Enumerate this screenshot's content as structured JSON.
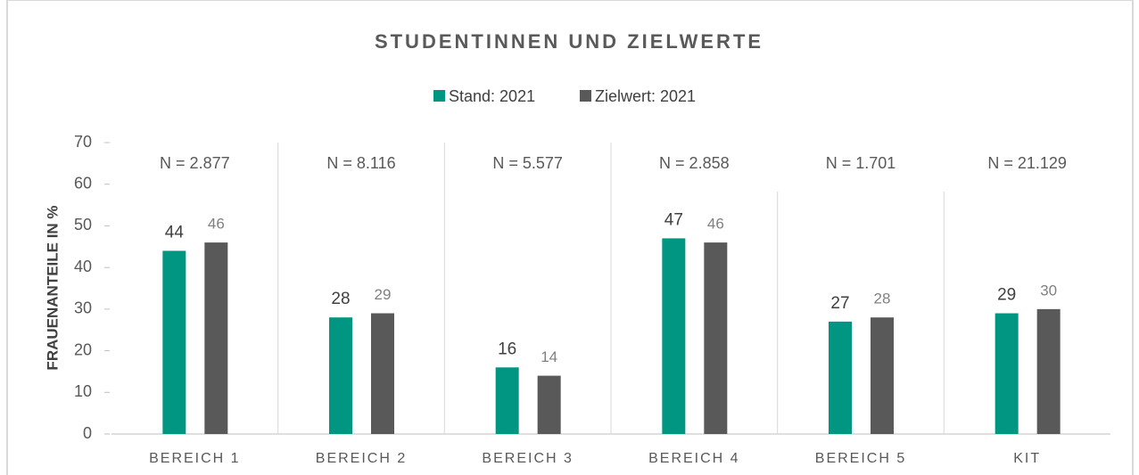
{
  "chart_data": {
    "type": "bar",
    "title": "STUDENTINNEN UND ZIELWERTE",
    "y_label": "FRAUENANTEILE IN %",
    "categories": [
      "BEREICH 1",
      "BEREICH 2",
      "BEREICH 3",
      "BEREICH 4",
      "BEREICH 5",
      "KIT"
    ],
    "series": [
      {
        "name": "Stand: 2021",
        "color": "#009682",
        "values": [
          44,
          28,
          16,
          47,
          27,
          29
        ]
      },
      {
        "name": "Zielwert: 2021",
        "color": "#595959",
        "values": [
          46,
          29,
          14,
          46,
          28,
          30
        ]
      }
    ],
    "annotations": [
      "N = 2.877",
      "N = 8.116",
      "N = 5.577",
      "N = 2.858",
      "N = 1.701",
      "N = 21.129"
    ],
    "ylim": [
      0,
      70
    ],
    "yticks": [
      0,
      10,
      20,
      30,
      40,
      50,
      60,
      70
    ],
    "legend": "top"
  }
}
